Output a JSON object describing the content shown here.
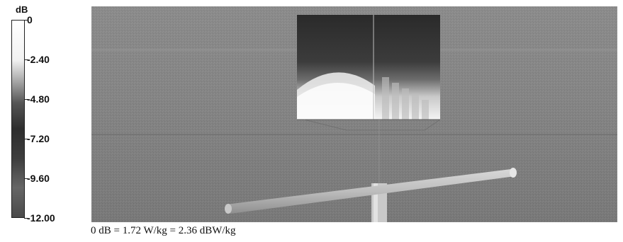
{
  "legend": {
    "unit": "dB",
    "ticks": [
      "0",
      "-2.40",
      "-4.80",
      "-7.20",
      "-9.60",
      "-12.00"
    ],
    "levels": [
      0,
      -2.4,
      -4.8,
      -7.2,
      -9.6,
      -12.0
    ],
    "range": [
      -12.0,
      0
    ]
  },
  "caption": "0 dB = 1.72 W/kg = 2.36 dBW/kg"
}
